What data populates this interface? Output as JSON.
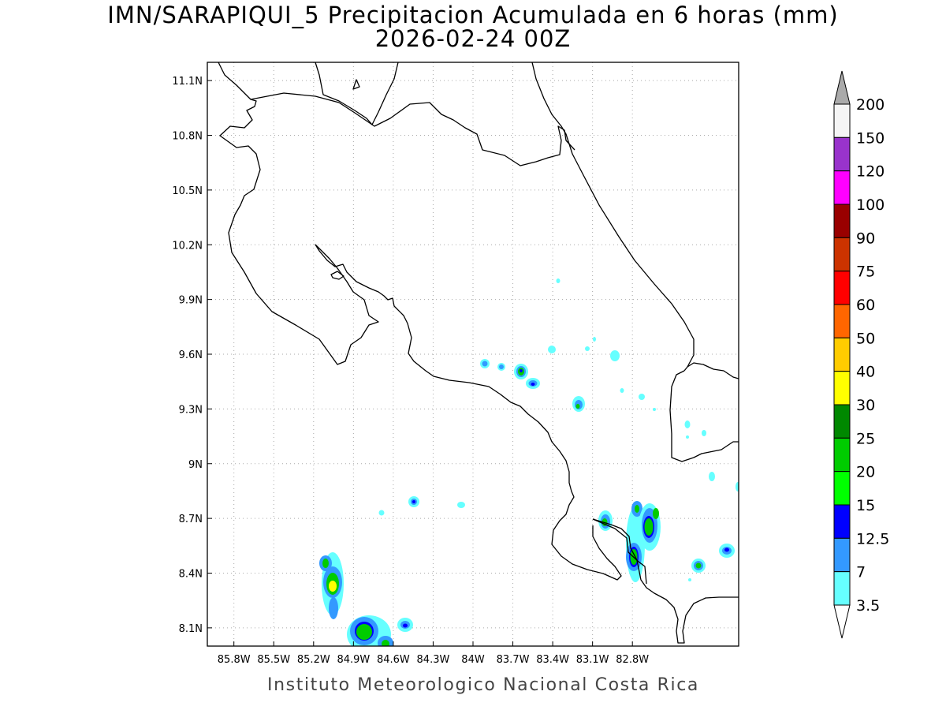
{
  "title": {
    "line1": "IMN/SARAPIQUI_5 Precipitacion Acumulada en 6 horas (mm)",
    "line2": "2026-02-24 00Z"
  },
  "credit": "Instituto Meteorologico Nacional Costa Rica",
  "map": {
    "lon_range": [
      -86.0,
      -82.0
    ],
    "lat_range": [
      8.0,
      11.2
    ],
    "grid": true,
    "lon_ticks": [
      "85.8W",
      "85.5W",
      "85.2W",
      "84.9W",
      "84.6W",
      "84.3W",
      "84W",
      "83.7W",
      "83.4W",
      "83.1W",
      "82.8W"
    ],
    "lat_ticks": [
      "11.1N",
      "10.8N",
      "10.5N",
      "10.2N",
      "9.9N",
      "9.6N",
      "9.3N",
      "9N",
      "8.7N",
      "8.4N",
      "8.1N"
    ]
  },
  "colorbar": {
    "labels": [
      "200",
      "150",
      "120",
      "100",
      "90",
      "75",
      "60",
      "50",
      "40",
      "30",
      "25",
      "20",
      "15",
      "12.5",
      "7",
      "3.5"
    ],
    "colors_top_to_bottom": [
      "#f5f5f5",
      "#9933cc",
      "#ff00ff",
      "#990000",
      "#cc3300",
      "#ff0000",
      "#ff6600",
      "#ffcc00",
      "#ffff00",
      "#008800",
      "#00cc00",
      "#00ff00",
      "#0000ff",
      "#3399ff",
      "#66ffff"
    ],
    "over_color": "#aaaaaa",
    "under_color": "#ffffff"
  },
  "colors": {
    "coast": "#000000",
    "grid": "#aaaaaa"
  }
}
